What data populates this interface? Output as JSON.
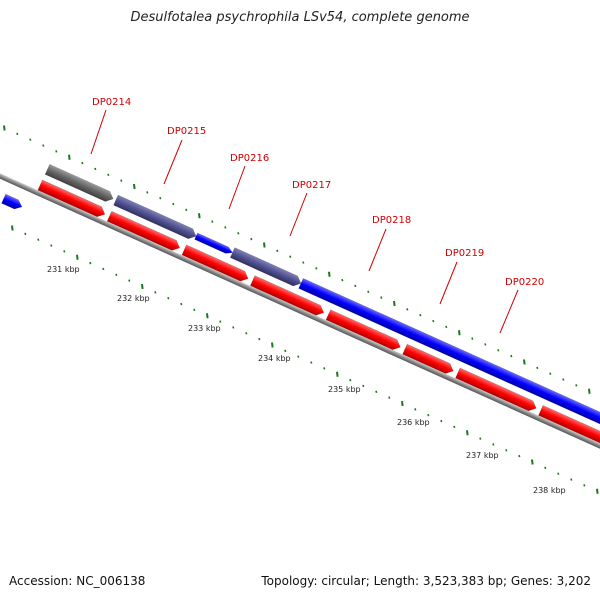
{
  "header": {
    "title": "Desulfotalea psychrophila LSv54, complete genome"
  },
  "footer": {
    "accession": "Accession: NC_006138",
    "summary": "Topology: circular; Length: 3,523,383 bp; Genes: 3,202"
  },
  "genes": [
    "DP0214",
    "DP0215",
    "DP0216",
    "DP0217",
    "DP0218",
    "DP0219",
    "DP0220"
  ],
  "kbp_labels": [
    "231 kbp",
    "232 kbp",
    "233 kbp",
    "234 kbp",
    "235 kbp",
    "236 kbp",
    "237 kbp",
    "238 kbp"
  ],
  "colors": {
    "gene_label": "#d00000",
    "reverse_strand": "#ff0000",
    "forward_strand": "#0000ff",
    "blended": "#505090",
    "gray_feature": "#666666",
    "backbone": "#888888",
    "ticks": "#1a7a1a"
  }
}
